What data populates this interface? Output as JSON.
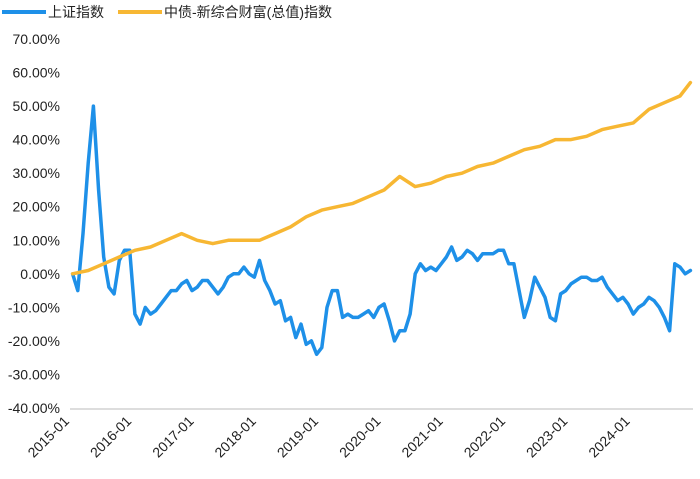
{
  "chart_data": {
    "type": "line",
    "title": "",
    "xlabel": "",
    "ylabel": "",
    "ylim": [
      -0.4,
      0.7
    ],
    "y_ticks": [
      "70.00%",
      "60.00%",
      "50.00%",
      "40.00%",
      "30.00%",
      "20.00%",
      "10.00%",
      "0.00%",
      "-10.00%",
      "-20.00%",
      "-30.00%",
      "-40.00%"
    ],
    "x_ticks": [
      "2015-01",
      "2016-01",
      "2017-01",
      "2018-01",
      "2019-01",
      "2020-01",
      "2021-01",
      "2022-01",
      "2023-01",
      "2024-01"
    ],
    "xlim": [
      "2015-01",
      "2024-12"
    ],
    "grid": false,
    "legend_position": "top-left",
    "series": [
      {
        "name": "上证指数",
        "color": "#1E90E8",
        "x": [
          "2015-01",
          "2015-02",
          "2015-03",
          "2015-04",
          "2015-05",
          "2015-06",
          "2015-07",
          "2015-08",
          "2015-09",
          "2015-10",
          "2015-11",
          "2015-12",
          "2016-01",
          "2016-02",
          "2016-03",
          "2016-04",
          "2016-05",
          "2016-06",
          "2016-07",
          "2016-08",
          "2016-09",
          "2016-10",
          "2016-11",
          "2016-12",
          "2017-01",
          "2017-02",
          "2017-03",
          "2017-04",
          "2017-05",
          "2017-06",
          "2017-07",
          "2017-08",
          "2017-09",
          "2017-10",
          "2017-11",
          "2017-12",
          "2018-01",
          "2018-02",
          "2018-03",
          "2018-04",
          "2018-05",
          "2018-06",
          "2018-07",
          "2018-08",
          "2018-09",
          "2018-10",
          "2018-11",
          "2018-12",
          "2019-01",
          "2019-02",
          "2019-03",
          "2019-04",
          "2019-05",
          "2019-06",
          "2019-07",
          "2019-08",
          "2019-09",
          "2019-10",
          "2019-11",
          "2019-12",
          "2020-01",
          "2020-02",
          "2020-03",
          "2020-04",
          "2020-05",
          "2020-06",
          "2020-07",
          "2020-08",
          "2020-09",
          "2020-10",
          "2020-11",
          "2020-12",
          "2021-01",
          "2021-02",
          "2021-03",
          "2021-04",
          "2021-05",
          "2021-06",
          "2021-07",
          "2021-08",
          "2021-09",
          "2021-10",
          "2021-11",
          "2021-12",
          "2022-01",
          "2022-02",
          "2022-03",
          "2022-04",
          "2022-05",
          "2022-06",
          "2022-07",
          "2022-08",
          "2022-09",
          "2022-10",
          "2022-11",
          "2022-12",
          "2023-01",
          "2023-02",
          "2023-03",
          "2023-04",
          "2023-05",
          "2023-06",
          "2023-07",
          "2023-08",
          "2023-09",
          "2023-10",
          "2023-11",
          "2023-12",
          "2024-01",
          "2024-02",
          "2024-03",
          "2024-04",
          "2024-05",
          "2024-06",
          "2024-07",
          "2024-08",
          "2024-09",
          "2024-10",
          "2024-11",
          "2024-12"
        ],
        "values": [
          0.0,
          -0.05,
          0.12,
          0.33,
          0.5,
          0.25,
          0.05,
          -0.04,
          -0.06,
          0.04,
          0.07,
          0.07,
          -0.12,
          -0.15,
          -0.1,
          -0.12,
          -0.11,
          -0.09,
          -0.07,
          -0.05,
          -0.05,
          -0.03,
          -0.02,
          -0.05,
          -0.04,
          -0.02,
          -0.02,
          -0.04,
          -0.06,
          -0.04,
          -0.01,
          0.0,
          0.0,
          0.02,
          0.0,
          -0.01,
          0.04,
          -0.02,
          -0.05,
          -0.09,
          -0.08,
          -0.14,
          -0.13,
          -0.19,
          -0.15,
          -0.21,
          -0.2,
          -0.24,
          -0.22,
          -0.1,
          -0.05,
          -0.05,
          -0.13,
          -0.12,
          -0.13,
          -0.13,
          -0.12,
          -0.11,
          -0.13,
          -0.1,
          -0.09,
          -0.14,
          -0.2,
          -0.17,
          -0.17,
          -0.12,
          0.0,
          0.03,
          0.01,
          0.02,
          0.01,
          0.03,
          0.05,
          0.08,
          0.04,
          0.05,
          0.07,
          0.06,
          0.04,
          0.06,
          0.06,
          0.06,
          0.07,
          0.07,
          0.03,
          0.03,
          -0.05,
          -0.13,
          -0.08,
          -0.01,
          -0.04,
          -0.07,
          -0.13,
          -0.14,
          -0.06,
          -0.05,
          -0.03,
          -0.02,
          -0.01,
          -0.01,
          -0.02,
          -0.02,
          -0.01,
          -0.04,
          -0.06,
          -0.08,
          -0.07,
          -0.09,
          -0.12,
          -0.1,
          -0.09,
          -0.07,
          -0.08,
          -0.1,
          -0.13,
          -0.17,
          0.03,
          0.02,
          0.0,
          0.01
        ]
      },
      {
        "name": "中债-新综合财富(总值)指数",
        "color": "#F7B733",
        "x": [
          "2015-01",
          "2015-04",
          "2015-07",
          "2015-10",
          "2016-01",
          "2016-04",
          "2016-07",
          "2016-10",
          "2017-01",
          "2017-04",
          "2017-07",
          "2017-10",
          "2018-01",
          "2018-04",
          "2018-07",
          "2018-10",
          "2019-01",
          "2019-04",
          "2019-07",
          "2019-10",
          "2020-01",
          "2020-04",
          "2020-07",
          "2020-10",
          "2021-01",
          "2021-04",
          "2021-07",
          "2021-10",
          "2022-01",
          "2022-04",
          "2022-07",
          "2022-10",
          "2023-01",
          "2023-04",
          "2023-07",
          "2023-10",
          "2024-01",
          "2024-04",
          "2024-07",
          "2024-10",
          "2024-12"
        ],
        "values": [
          0.0,
          0.01,
          0.03,
          0.05,
          0.07,
          0.08,
          0.1,
          0.12,
          0.1,
          0.09,
          0.1,
          0.1,
          0.1,
          0.12,
          0.14,
          0.17,
          0.19,
          0.2,
          0.21,
          0.23,
          0.25,
          0.29,
          0.26,
          0.27,
          0.29,
          0.3,
          0.32,
          0.33,
          0.35,
          0.37,
          0.38,
          0.4,
          0.4,
          0.41,
          0.43,
          0.44,
          0.45,
          0.49,
          0.51,
          0.53,
          0.57
        ]
      }
    ]
  }
}
